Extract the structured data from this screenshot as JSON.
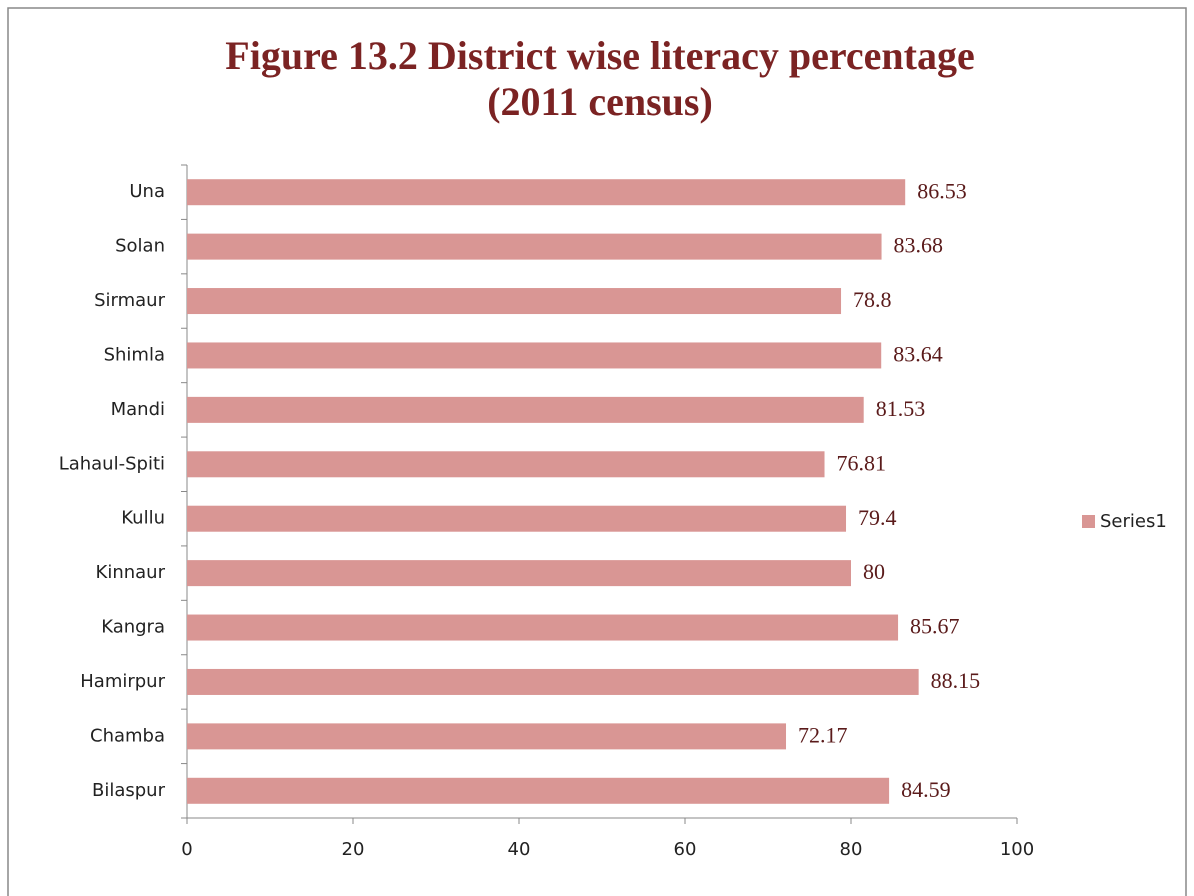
{
  "chart_data": {
    "type": "bar",
    "orientation": "horizontal",
    "title": [
      "Figure 13.2 District wise literacy percentage",
      "(2011 census)"
    ],
    "categories": [
      "Bilaspur",
      "Chamba",
      "Hamirpur",
      "Kangra",
      "Kinnaur",
      "Kullu",
      "Lahaul-Spiti",
      "Mandi",
      "Shimla",
      "Sirmaur",
      "Solan",
      "Una"
    ],
    "series": [
      {
        "name": "Series1",
        "color": "#d99694",
        "values": [
          84.59,
          72.17,
          88.15,
          85.67,
          80,
          79.4,
          76.81,
          81.53,
          83.64,
          78.8,
          83.68,
          86.53
        ]
      }
    ],
    "xlim": [
      0,
      100
    ],
    "xticks": [
      0,
      20,
      40,
      60,
      80,
      100
    ],
    "legend": "right"
  }
}
